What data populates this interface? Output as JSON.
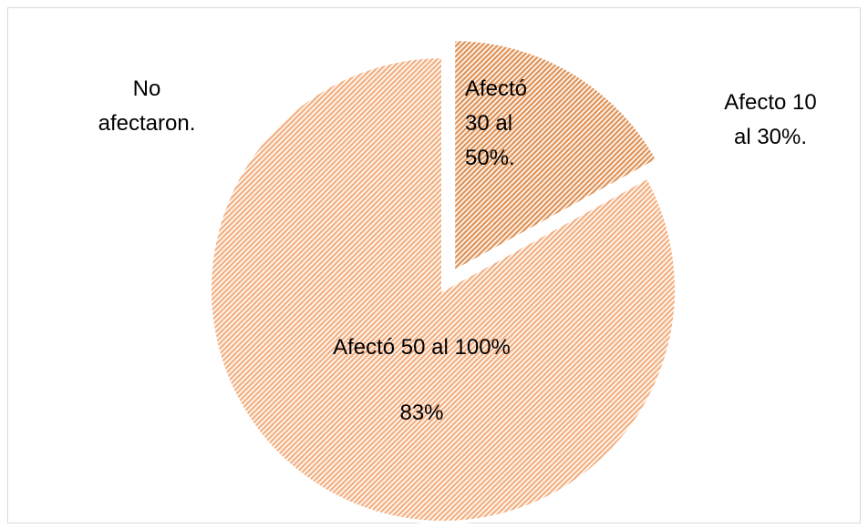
{
  "chart_data": {
    "type": "pie",
    "categories": [
      "No afectaron.",
      "Afecto 10 al 30%.",
      "Afectó 30 al 50%.",
      "Afectó 50 al 100%"
    ],
    "values": [
      0,
      0,
      17,
      83
    ],
    "value_labels": [
      null,
      null,
      null,
      "83%"
    ],
    "colors": [
      "#f4b183",
      "#f4b183",
      "#e0955a",
      "#f4b183"
    ]
  }
}
